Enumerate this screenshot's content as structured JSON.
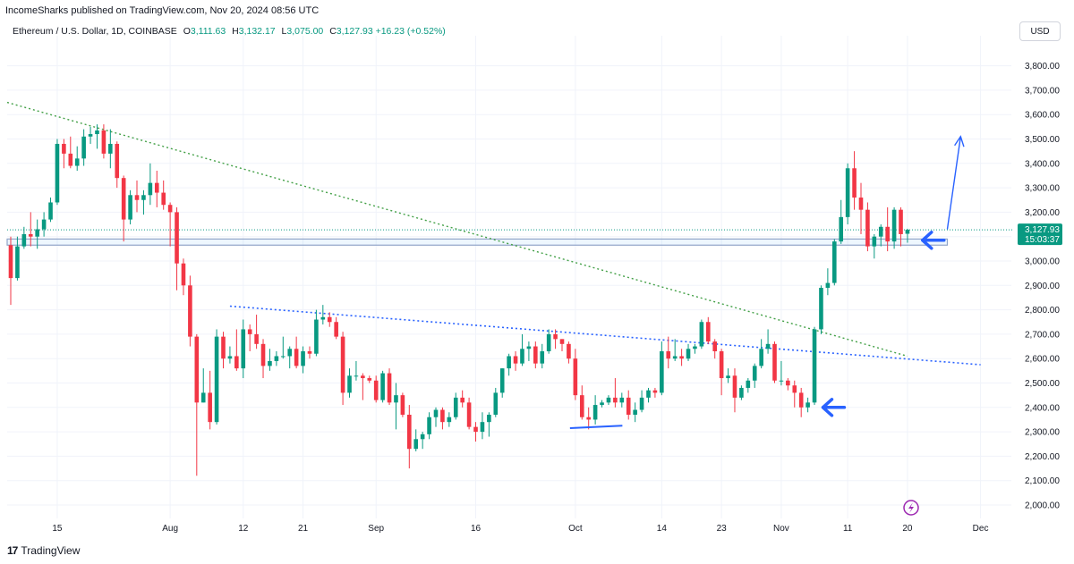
{
  "publisher_line": "IncomeSharks published on TradingView.com, Nov 20, 2024 08:56 UTC",
  "legend": {
    "symbol": "Ethereum / U.S. Dollar, 1D, COINBASE",
    "o_label": "O",
    "o_value": "3,111.63",
    "h_label": "H",
    "h_value": "3,132.17",
    "l_label": "L",
    "l_value": "3,075.00",
    "c_label": "C",
    "c_value": "3,127.93",
    "change": "+16.23 (+0.52%)"
  },
  "currency": "USD",
  "footer_logo_mark": "17",
  "footer_logo_text": "TradingView",
  "colors": {
    "up": "#089981",
    "down": "#f23645",
    "arrow": "#2962ff",
    "downtrend_line": "#43a047",
    "blue_dotted": "#2962ff"
  },
  "icons": {
    "lightning": "lightning-icon"
  },
  "chart_data": {
    "type": "candlestick",
    "ylim": [
      1950,
      3900
    ],
    "x_range": [
      "2024-07-08",
      "2024-12-04"
    ],
    "y_tick_labels": [
      "2,000.00",
      "2,100.00",
      "2,200.00",
      "2,300.00",
      "2,400.00",
      "2,500.00",
      "2,600.00",
      "2,700.00",
      "2,800.00",
      "2,900.00",
      "3,000.00",
      "3,100.00",
      "3,200.00",
      "3,300.00",
      "3,400.00",
      "3,500.00",
      "3,600.00",
      "3,700.00",
      "3,800.00"
    ],
    "x_tick_labels": [
      {
        "date": "2024-07-15",
        "label": "15"
      },
      {
        "date": "2024-08-01",
        "label": "Aug"
      },
      {
        "date": "2024-08-12",
        "label": "12"
      },
      {
        "date": "2024-08-21",
        "label": "21"
      },
      {
        "date": "2024-09-01",
        "label": "Sep"
      },
      {
        "date": "2024-09-16",
        "label": "16"
      },
      {
        "date": "2024-10-01",
        "label": "Oct"
      },
      {
        "date": "2024-10-14",
        "label": "14"
      },
      {
        "date": "2024-10-23",
        "label": "23"
      },
      {
        "date": "2024-11-01",
        "label": "Nov"
      },
      {
        "date": "2024-11-11",
        "label": "11"
      },
      {
        "date": "2024-11-20",
        "label": "20"
      },
      {
        "date": "2024-12-01",
        "label": "Dec"
      }
    ],
    "last_price_label": "3,127.93",
    "countdown_label": "15:03:37",
    "last_price": 3127.93,
    "series": [
      {
        "d": "2024-07-08",
        "o": 3065,
        "h": 3100,
        "l": 2820,
        "c": 2930
      },
      {
        "d": "2024-07-09",
        "o": 2930,
        "h": 3100,
        "l": 2920,
        "c": 3060
      },
      {
        "d": "2024-07-10",
        "o": 3060,
        "h": 3140,
        "l": 3050,
        "c": 3110
      },
      {
        "d": "2024-07-11",
        "o": 3110,
        "h": 3200,
        "l": 3060,
        "c": 3100
      },
      {
        "d": "2024-07-12",
        "o": 3100,
        "h": 3170,
        "l": 3050,
        "c": 3130
      },
      {
        "d": "2024-07-13",
        "o": 3130,
        "h": 3200,
        "l": 3100,
        "c": 3170
      },
      {
        "d": "2024-07-14",
        "o": 3170,
        "h": 3260,
        "l": 3160,
        "c": 3240
      },
      {
        "d": "2024-07-15",
        "o": 3240,
        "h": 3500,
        "l": 3230,
        "c": 3480
      },
      {
        "d": "2024-07-16",
        "o": 3480,
        "h": 3500,
        "l": 3380,
        "c": 3440
      },
      {
        "d": "2024-07-17",
        "o": 3440,
        "h": 3510,
        "l": 3380,
        "c": 3390
      },
      {
        "d": "2024-07-18",
        "o": 3390,
        "h": 3470,
        "l": 3370,
        "c": 3420
      },
      {
        "d": "2024-07-19",
        "o": 3420,
        "h": 3540,
        "l": 3390,
        "c": 3510
      },
      {
        "d": "2024-07-20",
        "o": 3510,
        "h": 3550,
        "l": 3480,
        "c": 3520
      },
      {
        "d": "2024-07-21",
        "o": 3520,
        "h": 3560,
        "l": 3460,
        "c": 3535
      },
      {
        "d": "2024-07-22",
        "o": 3535,
        "h": 3560,
        "l": 3420,
        "c": 3440
      },
      {
        "d": "2024-07-23",
        "o": 3440,
        "h": 3540,
        "l": 3380,
        "c": 3480
      },
      {
        "d": "2024-07-24",
        "o": 3480,
        "h": 3490,
        "l": 3300,
        "c": 3340
      },
      {
        "d": "2024-07-25",
        "o": 3340,
        "h": 3350,
        "l": 3080,
        "c": 3170
      },
      {
        "d": "2024-07-26",
        "o": 3170,
        "h": 3290,
        "l": 3150,
        "c": 3270
      },
      {
        "d": "2024-07-27",
        "o": 3270,
        "h": 3330,
        "l": 3200,
        "c": 3250
      },
      {
        "d": "2024-07-28",
        "o": 3250,
        "h": 3290,
        "l": 3190,
        "c": 3270
      },
      {
        "d": "2024-07-29",
        "o": 3270,
        "h": 3400,
        "l": 3230,
        "c": 3320
      },
      {
        "d": "2024-07-30",
        "o": 3320,
        "h": 3370,
        "l": 3220,
        "c": 3280
      },
      {
        "d": "2024-07-31",
        "o": 3280,
        "h": 3330,
        "l": 3210,
        "c": 3230
      },
      {
        "d": "2024-08-01",
        "o": 3230,
        "h": 3240,
        "l": 3060,
        "c": 3200
      },
      {
        "d": "2024-08-02",
        "o": 3200,
        "h": 3220,
        "l": 2880,
        "c": 2990
      },
      {
        "d": "2024-08-03",
        "o": 2990,
        "h": 3010,
        "l": 2860,
        "c": 2900
      },
      {
        "d": "2024-08-04",
        "o": 2900,
        "h": 2940,
        "l": 2650,
        "c": 2690
      },
      {
        "d": "2024-08-05",
        "o": 2690,
        "h": 2700,
        "l": 2120,
        "c": 2420
      },
      {
        "d": "2024-08-06",
        "o": 2420,
        "h": 2560,
        "l": 2420,
        "c": 2460
      },
      {
        "d": "2024-08-07",
        "o": 2460,
        "h": 2550,
        "l": 2310,
        "c": 2340
      },
      {
        "d": "2024-08-08",
        "o": 2340,
        "h": 2720,
        "l": 2330,
        "c": 2690
      },
      {
        "d": "2024-08-09",
        "o": 2690,
        "h": 2710,
        "l": 2560,
        "c": 2600
      },
      {
        "d": "2024-08-10",
        "o": 2600,
        "h": 2650,
        "l": 2580,
        "c": 2610
      },
      {
        "d": "2024-08-11",
        "o": 2610,
        "h": 2720,
        "l": 2550,
        "c": 2560
      },
      {
        "d": "2024-08-12",
        "o": 2560,
        "h": 2760,
        "l": 2520,
        "c": 2720
      },
      {
        "d": "2024-08-13",
        "o": 2720,
        "h": 2740,
        "l": 2630,
        "c": 2700
      },
      {
        "d": "2024-08-14",
        "o": 2700,
        "h": 2780,
        "l": 2640,
        "c": 2660
      },
      {
        "d": "2024-08-15",
        "o": 2660,
        "h": 2680,
        "l": 2520,
        "c": 2570
      },
      {
        "d": "2024-08-16",
        "o": 2570,
        "h": 2640,
        "l": 2550,
        "c": 2590
      },
      {
        "d": "2024-08-17",
        "o": 2590,
        "h": 2630,
        "l": 2570,
        "c": 2610
      },
      {
        "d": "2024-08-18",
        "o": 2610,
        "h": 2690,
        "l": 2600,
        "c": 2610
      },
      {
        "d": "2024-08-19",
        "o": 2610,
        "h": 2650,
        "l": 2560,
        "c": 2640
      },
      {
        "d": "2024-08-20",
        "o": 2640,
        "h": 2690,
        "l": 2560,
        "c": 2570
      },
      {
        "d": "2024-08-21",
        "o": 2570,
        "h": 2650,
        "l": 2540,
        "c": 2630
      },
      {
        "d": "2024-08-22",
        "o": 2630,
        "h": 2650,
        "l": 2600,
        "c": 2620
      },
      {
        "d": "2024-08-23",
        "o": 2620,
        "h": 2800,
        "l": 2610,
        "c": 2760
      },
      {
        "d": "2024-08-24",
        "o": 2760,
        "h": 2820,
        "l": 2740,
        "c": 2770
      },
      {
        "d": "2024-08-25",
        "o": 2770,
        "h": 2790,
        "l": 2730,
        "c": 2750
      },
      {
        "d": "2024-08-26",
        "o": 2750,
        "h": 2770,
        "l": 2680,
        "c": 2690
      },
      {
        "d": "2024-08-27",
        "o": 2690,
        "h": 2710,
        "l": 2410,
        "c": 2460
      },
      {
        "d": "2024-08-28",
        "o": 2460,
        "h": 2560,
        "l": 2440,
        "c": 2530
      },
      {
        "d": "2024-08-29",
        "o": 2530,
        "h": 2590,
        "l": 2510,
        "c": 2530
      },
      {
        "d": "2024-08-30",
        "o": 2530,
        "h": 2540,
        "l": 2430,
        "c": 2520
      },
      {
        "d": "2024-08-31",
        "o": 2520,
        "h": 2530,
        "l": 2500,
        "c": 2510
      },
      {
        "d": "2024-09-01",
        "o": 2510,
        "h": 2530,
        "l": 2420,
        "c": 2430
      },
      {
        "d": "2024-09-02",
        "o": 2430,
        "h": 2550,
        "l": 2420,
        "c": 2540
      },
      {
        "d": "2024-09-03",
        "o": 2540,
        "h": 2560,
        "l": 2410,
        "c": 2420
      },
      {
        "d": "2024-09-04",
        "o": 2420,
        "h": 2500,
        "l": 2310,
        "c": 2450
      },
      {
        "d": "2024-09-05",
        "o": 2450,
        "h": 2460,
        "l": 2360,
        "c": 2370
      },
      {
        "d": "2024-09-06",
        "o": 2370,
        "h": 2410,
        "l": 2150,
        "c": 2230
      },
      {
        "d": "2024-09-07",
        "o": 2230,
        "h": 2310,
        "l": 2220,
        "c": 2270
      },
      {
        "d": "2024-09-08",
        "o": 2270,
        "h": 2300,
        "l": 2230,
        "c": 2290
      },
      {
        "d": "2024-09-09",
        "o": 2290,
        "h": 2380,
        "l": 2270,
        "c": 2360
      },
      {
        "d": "2024-09-10",
        "o": 2360,
        "h": 2400,
        "l": 2320,
        "c": 2390
      },
      {
        "d": "2024-09-11",
        "o": 2390,
        "h": 2400,
        "l": 2310,
        "c": 2340
      },
      {
        "d": "2024-09-12",
        "o": 2340,
        "h": 2380,
        "l": 2320,
        "c": 2360
      },
      {
        "d": "2024-09-13",
        "o": 2360,
        "h": 2460,
        "l": 2350,
        "c": 2440
      },
      {
        "d": "2024-09-14",
        "o": 2440,
        "h": 2470,
        "l": 2400,
        "c": 2420
      },
      {
        "d": "2024-09-15",
        "o": 2420,
        "h": 2440,
        "l": 2310,
        "c": 2320
      },
      {
        "d": "2024-09-16",
        "o": 2320,
        "h": 2340,
        "l": 2260,
        "c": 2300
      },
      {
        "d": "2024-09-17",
        "o": 2300,
        "h": 2380,
        "l": 2270,
        "c": 2340
      },
      {
        "d": "2024-09-18",
        "o": 2340,
        "h": 2380,
        "l": 2280,
        "c": 2370
      },
      {
        "d": "2024-09-19",
        "o": 2370,
        "h": 2480,
        "l": 2360,
        "c": 2460
      },
      {
        "d": "2024-09-20",
        "o": 2460,
        "h": 2560,
        "l": 2440,
        "c": 2560
      },
      {
        "d": "2024-09-21",
        "o": 2560,
        "h": 2620,
        "l": 2530,
        "c": 2610
      },
      {
        "d": "2024-09-22",
        "o": 2610,
        "h": 2630,
        "l": 2550,
        "c": 2580
      },
      {
        "d": "2024-09-23",
        "o": 2580,
        "h": 2700,
        "l": 2570,
        "c": 2640
      },
      {
        "d": "2024-09-24",
        "o": 2640,
        "h": 2670,
        "l": 2590,
        "c": 2650
      },
      {
        "d": "2024-09-25",
        "o": 2650,
        "h": 2670,
        "l": 2560,
        "c": 2580
      },
      {
        "d": "2024-09-26",
        "o": 2580,
        "h": 2660,
        "l": 2560,
        "c": 2630
      },
      {
        "d": "2024-09-27",
        "o": 2630,
        "h": 2720,
        "l": 2620,
        "c": 2700
      },
      {
        "d": "2024-09-28",
        "o": 2700,
        "h": 2720,
        "l": 2640,
        "c": 2680
      },
      {
        "d": "2024-09-29",
        "o": 2680,
        "h": 2680,
        "l": 2630,
        "c": 2660
      },
      {
        "d": "2024-09-30",
        "o": 2660,
        "h": 2670,
        "l": 2580,
        "c": 2600
      },
      {
        "d": "2024-10-01",
        "o": 2600,
        "h": 2640,
        "l": 2430,
        "c": 2450
      },
      {
        "d": "2024-10-02",
        "o": 2450,
        "h": 2490,
        "l": 2350,
        "c": 2360
      },
      {
        "d": "2024-10-03",
        "o": 2360,
        "h": 2400,
        "l": 2310,
        "c": 2350
      },
      {
        "d": "2024-10-04",
        "o": 2350,
        "h": 2450,
        "l": 2330,
        "c": 2410
      },
      {
        "d": "2024-10-05",
        "o": 2410,
        "h": 2430,
        "l": 2400,
        "c": 2420
      },
      {
        "d": "2024-10-06",
        "o": 2420,
        "h": 2450,
        "l": 2410,
        "c": 2440
      },
      {
        "d": "2024-10-07",
        "o": 2440,
        "h": 2520,
        "l": 2400,
        "c": 2420
      },
      {
        "d": "2024-10-08",
        "o": 2420,
        "h": 2460,
        "l": 2400,
        "c": 2440
      },
      {
        "d": "2024-10-09",
        "o": 2440,
        "h": 2470,
        "l": 2350,
        "c": 2370
      },
      {
        "d": "2024-10-10",
        "o": 2370,
        "h": 2420,
        "l": 2340,
        "c": 2390
      },
      {
        "d": "2024-10-11",
        "o": 2390,
        "h": 2470,
        "l": 2380,
        "c": 2440
      },
      {
        "d": "2024-10-12",
        "o": 2440,
        "h": 2480,
        "l": 2420,
        "c": 2470
      },
      {
        "d": "2024-10-13",
        "o": 2470,
        "h": 2480,
        "l": 2440,
        "c": 2460
      },
      {
        "d": "2024-10-14",
        "o": 2460,
        "h": 2670,
        "l": 2450,
        "c": 2630
      },
      {
        "d": "2024-10-15",
        "o": 2630,
        "h": 2690,
        "l": 2560,
        "c": 2600
      },
      {
        "d": "2024-10-16",
        "o": 2600,
        "h": 2680,
        "l": 2590,
        "c": 2610
      },
      {
        "d": "2024-10-17",
        "o": 2610,
        "h": 2640,
        "l": 2570,
        "c": 2600
      },
      {
        "d": "2024-10-18",
        "o": 2600,
        "h": 2660,
        "l": 2590,
        "c": 2640
      },
      {
        "d": "2024-10-19",
        "o": 2640,
        "h": 2660,
        "l": 2620,
        "c": 2650
      },
      {
        "d": "2024-10-20",
        "o": 2650,
        "h": 2760,
        "l": 2640,
        "c": 2750
      },
      {
        "d": "2024-10-21",
        "o": 2750,
        "h": 2770,
        "l": 2660,
        "c": 2670
      },
      {
        "d": "2024-10-22",
        "o": 2670,
        "h": 2680,
        "l": 2600,
        "c": 2630
      },
      {
        "d": "2024-10-23",
        "o": 2630,
        "h": 2640,
        "l": 2450,
        "c": 2520
      },
      {
        "d": "2024-10-24",
        "o": 2520,
        "h": 2560,
        "l": 2500,
        "c": 2530
      },
      {
        "d": "2024-10-25",
        "o": 2530,
        "h": 2560,
        "l": 2380,
        "c": 2440
      },
      {
        "d": "2024-10-26",
        "o": 2440,
        "h": 2490,
        "l": 2430,
        "c": 2480
      },
      {
        "d": "2024-10-27",
        "o": 2480,
        "h": 2520,
        "l": 2460,
        "c": 2510
      },
      {
        "d": "2024-10-28",
        "o": 2510,
        "h": 2580,
        "l": 2480,
        "c": 2570
      },
      {
        "d": "2024-10-29",
        "o": 2570,
        "h": 2680,
        "l": 2560,
        "c": 2640
      },
      {
        "d": "2024-10-30",
        "o": 2640,
        "h": 2720,
        "l": 2620,
        "c": 2660
      },
      {
        "d": "2024-10-31",
        "o": 2660,
        "h": 2670,
        "l": 2500,
        "c": 2510
      },
      {
        "d": "2024-11-01",
        "o": 2510,
        "h": 2590,
        "l": 2490,
        "c": 2510
      },
      {
        "d": "2024-11-02",
        "o": 2510,
        "h": 2520,
        "l": 2470,
        "c": 2490
      },
      {
        "d": "2024-11-03",
        "o": 2490,
        "h": 2510,
        "l": 2400,
        "c": 2460
      },
      {
        "d": "2024-11-04",
        "o": 2460,
        "h": 2480,
        "l": 2360,
        "c": 2400
      },
      {
        "d": "2024-11-05",
        "o": 2400,
        "h": 2440,
        "l": 2380,
        "c": 2420
      },
      {
        "d": "2024-11-06",
        "o": 2420,
        "h": 2730,
        "l": 2410,
        "c": 2720
      },
      {
        "d": "2024-11-07",
        "o": 2720,
        "h": 2900,
        "l": 2700,
        "c": 2890
      },
      {
        "d": "2024-11-08",
        "o": 2890,
        "h": 2970,
        "l": 2860,
        "c": 2910
      },
      {
        "d": "2024-11-09",
        "o": 2910,
        "h": 3090,
        "l": 2900,
        "c": 3080
      },
      {
        "d": "2024-11-10",
        "o": 3080,
        "h": 3250,
        "l": 3070,
        "c": 3180
      },
      {
        "d": "2024-11-11",
        "o": 3180,
        "h": 3400,
        "l": 3150,
        "c": 3380
      },
      {
        "d": "2024-11-12",
        "o": 3380,
        "h": 3450,
        "l": 3210,
        "c": 3260
      },
      {
        "d": "2024-11-13",
        "o": 3260,
        "h": 3320,
        "l": 3110,
        "c": 3210
      },
      {
        "d": "2024-11-14",
        "o": 3210,
        "h": 3240,
        "l": 3040,
        "c": 3060
      },
      {
        "d": "2024-11-15",
        "o": 3060,
        "h": 3110,
        "l": 3010,
        "c": 3100
      },
      {
        "d": "2024-11-16",
        "o": 3100,
        "h": 3150,
        "l": 3060,
        "c": 3140
      },
      {
        "d": "2024-11-17",
        "o": 3140,
        "h": 3220,
        "l": 3040,
        "c": 3080
      },
      {
        "d": "2024-11-18",
        "o": 3080,
        "h": 3220,
        "l": 3050,
        "c": 3210
      },
      {
        "d": "2024-11-19",
        "o": 3210,
        "h": 3220,
        "l": 3060,
        "c": 3110
      },
      {
        "d": "2024-11-20",
        "o": 3111.63,
        "h": 3132.17,
        "l": 3075.0,
        "c": 3127.93
      }
    ],
    "drawings": {
      "downtrend_line": {
        "from": {
          "d": "2024-07-08",
          "p": 3650
        },
        "to": {
          "d": "2024-11-20",
          "p": 2610
        }
      },
      "resistance_line": {
        "from": {
          "d": "2024-08-10",
          "p": 2815
        },
        "to": {
          "d": "2024-12-01",
          "p": 2575
        }
      },
      "support_box": {
        "from": {
          "d": "2024-07-08",
          "p": 3090
        },
        "to": {
          "d": "2024-11-26",
          "p": 3065
        }
      },
      "price_line": 3127.93,
      "projection_arrow": {
        "from": {
          "d": "2024-11-26",
          "p": 3130
        },
        "to": {
          "d": "2024-11-28",
          "p": 3510
        }
      },
      "short_support_line": {
        "from": {
          "d": "2024-10-01",
          "p": 2315
        },
        "to": {
          "d": "2024-10-07",
          "p": 2325
        }
      },
      "arrow_marks": [
        {
          "d": "2024-11-07",
          "p": 2400
        },
        {
          "d": "2024-11-22",
          "p": 3085
        }
      ]
    }
  }
}
